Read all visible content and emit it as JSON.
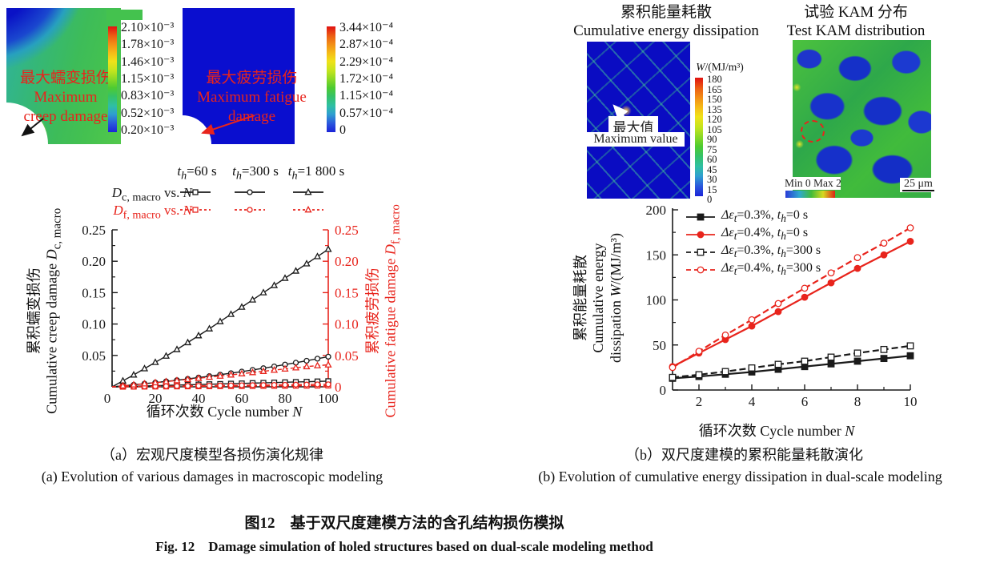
{
  "colors": {
    "black": "#1a1a1a",
    "red": "#e8241c",
    "contour_blue": "#0a0ecf"
  },
  "panel_a": {
    "creep_image": {
      "label_cn": "最大蠕变损伤",
      "label_en_line1": "Maximum",
      "label_en_line2": "creep damage",
      "colorbar_labels": [
        "2.10×10⁻³",
        "1.78×10⁻³",
        "1.46×10⁻³",
        "1.15×10⁻³",
        "0.83×10⁻³",
        "0.52×10⁻³",
        "0.20×10⁻³"
      ]
    },
    "fatigue_image": {
      "label_cn": "最大疲劳损伤",
      "label_en_line1": "Maximum fatigue",
      "label_en_line2": "damage",
      "colorbar_labels": [
        "3.44×10⁻⁴",
        "2.87×10⁻⁴",
        "2.29×10⁻⁴",
        "1.72×10⁻⁴",
        "1.15×10⁻⁴",
        "0.57×10⁻⁴",
        "0"
      ]
    },
    "legend": {
      "columns": [
        [
          {
            "t": "t",
            "i": true
          },
          {
            "t": "h",
            "i": true,
            "sub": true
          },
          {
            "t": "=60 s"
          }
        ],
        [
          {
            "t": "t",
            "i": true
          },
          {
            "t": "h",
            "i": true,
            "sub": true
          },
          {
            "t": "=300 s"
          }
        ],
        [
          {
            "t": "t",
            "i": true
          },
          {
            "t": "h",
            "i": true,
            "sub": true
          },
          {
            "t": "=1 800 s"
          }
        ]
      ],
      "rows": [
        {
          "label": [
            {
              "t": "D",
              "i": true
            },
            {
              "t": "c, macro",
              "sub": true
            },
            {
              "t": " vs. "
            },
            {
              "t": "N",
              "i": true
            }
          ],
          "color": "black",
          "line": "solid",
          "marker_fill": "open",
          "markers": [
            "square",
            "circle",
            "triangle"
          ]
        },
        {
          "label": [
            {
              "t": "D",
              "i": true
            },
            {
              "t": "f, macro",
              "sub": true
            },
            {
              "t": " vs. "
            },
            {
              "t": "N",
              "i": true
            }
          ],
          "color": "red",
          "line": "dashed",
          "marker_fill": "open",
          "markers": [
            "square",
            "circle",
            "triangle"
          ]
        }
      ]
    },
    "caption_cn": "（a）宏观尺度模型各损伤演化规律",
    "caption_en": "(a) Evolution of various damages in macroscopic modeling"
  },
  "panel_b": {
    "sim_title_cn": "累积能量耗散",
    "sim_title_en": "Cumulative energy dissipation",
    "kam_title_cn": "试验 KAM 分布",
    "kam_title_en": "Test KAM distribution",
    "sim_annotation_cn": "最大值",
    "sim_annotation_en": "Maximum value",
    "w_colorbar": {
      "title_rich": [
        {
          "t": "W",
          "i": true
        },
        {
          "t": "/(MJ/m³)"
        }
      ],
      "labels": [
        "180",
        "165",
        "150",
        "135",
        "120",
        "105",
        "90",
        "75",
        "60",
        "45",
        "30",
        "15",
        "0"
      ]
    },
    "kam_scale": {
      "min_max": "Min 0 Max 2",
      "scalebar": "25 μm"
    },
    "caption_cn": "（b）双尺度建模的累积能量耗散演化",
    "caption_en": "(b) Evolution of cumulative energy dissipation in dual-scale modeling"
  },
  "figure_caption": {
    "cn": "图12　基于双尺度建模方法的含孔结构损伤模拟",
    "en": "Fig. 12　Damage simulation of holed structures based on dual-scale modeling method"
  },
  "chart_data": [
    {
      "id": "damage-evolution",
      "type": "line",
      "xlabel_rich": [
        {
          "t": "循环次数 Cycle number "
        },
        {
          "t": "N",
          "i": true
        }
      ],
      "ylabel_left_cn": "累积蠕变损伤",
      "ylabel_left_en_rich": [
        {
          "t": "Cumulative creep damage "
        },
        {
          "t": "D",
          "i": true
        },
        {
          "t": "c, macro",
          "sub": true
        }
      ],
      "ylabel_right_cn": "累积疲劳损伤",
      "ylabel_right_en_rich": [
        {
          "t": "Cumulative fatigue damage "
        },
        {
          "t": "D",
          "i": true
        },
        {
          "t": "f, macro",
          "sub": true
        }
      ],
      "xlim": [
        0,
        100
      ],
      "ylim": [
        0,
        0.25
      ],
      "xticks": [
        0,
        20,
        40,
        60,
        80,
        100
      ],
      "xtick_labels": [
        "0",
        "20",
        "40",
        "60",
        "80",
        "100"
      ],
      "yticks": [
        0,
        0.05,
        0.1,
        0.15,
        0.2,
        0.25
      ],
      "ytick_labels": [
        "0",
        "0.05",
        "0.10",
        "0.15",
        "0.20",
        "0.25"
      ],
      "x_minor_step": 10,
      "y_minor_step": 0.025,
      "grid": false,
      "x": [
        0,
        5,
        10,
        15,
        20,
        25,
        30,
        35,
        40,
        45,
        50,
        55,
        60,
        65,
        70,
        75,
        80,
        85,
        90,
        95,
        100
      ],
      "series": [
        {
          "name": "Dc,macro th=60 s",
          "axis": "left",
          "color": "black",
          "line": "solid",
          "marker": "square",
          "marker_fill": "open",
          "values": [
            0,
            0.0005,
            0.0009,
            0.0014,
            0.0018,
            0.0023,
            0.0027,
            0.0032,
            0.0036,
            0.0041,
            0.0045,
            0.005,
            0.0054,
            0.0059,
            0.0063,
            0.0068,
            0.0072,
            0.0077,
            0.0081,
            0.0086,
            0.009
          ]
        },
        {
          "name": "Dc,macro th=300 s",
          "axis": "left",
          "color": "black",
          "line": "solid",
          "marker": "circle",
          "marker_fill": "open",
          "values": [
            0,
            0.0016,
            0.0032,
            0.005,
            0.0067,
            0.0086,
            0.0105,
            0.0126,
            0.0147,
            0.017,
            0.0193,
            0.0217,
            0.0242,
            0.0269,
            0.0296,
            0.0324,
            0.0354,
            0.0384,
            0.0415,
            0.0448,
            0.048
          ]
        },
        {
          "name": "Dc,macro th=1 800 s",
          "axis": "left",
          "color": "black",
          "line": "solid",
          "marker": "triangle",
          "marker_fill": "open",
          "values": [
            0,
            0.0095,
            0.019,
            0.029,
            0.039,
            0.049,
            0.0595,
            0.0705,
            0.0815,
            0.0925,
            0.104,
            0.1155,
            0.127,
            0.1385,
            0.15,
            0.1615,
            0.173,
            0.1845,
            0.196,
            0.2075,
            0.219
          ]
        },
        {
          "name": "Df,macro th=60 s",
          "axis": "right",
          "color": "red",
          "line": "dashed",
          "marker": "square",
          "marker_fill": "open",
          "values": [
            0,
            0.0001,
            0.0002,
            0.0003,
            0.0004,
            0.0005,
            0.0006,
            0.0007,
            0.0008,
            0.0009,
            0.001,
            0.0011,
            0.0012,
            0.0013,
            0.0014,
            0.0015,
            0.0016,
            0.0017,
            0.0018,
            0.0019,
            0.002
          ]
        },
        {
          "name": "Df,macro th=300 s",
          "axis": "right",
          "color": "red",
          "line": "dashed",
          "marker": "circle",
          "marker_fill": "open",
          "values": [
            0,
            0.0002,
            0.0004,
            0.0006,
            0.0008,
            0.001,
            0.0012,
            0.0014,
            0.0016,
            0.0018,
            0.002,
            0.0022,
            0.0024,
            0.0026,
            0.0028,
            0.003,
            0.0032,
            0.0034,
            0.0036,
            0.0038,
            0.004
          ]
        },
        {
          "name": "Df,macro th=1 800 s",
          "axis": "right",
          "color": "red",
          "line": "dashed",
          "marker": "triangle",
          "marker_fill": "open",
          "values": [
            0,
            0.0016,
            0.0032,
            0.0049,
            0.0066,
            0.0083,
            0.01,
            0.0118,
            0.0136,
            0.0154,
            0.0172,
            0.019,
            0.0209,
            0.0228,
            0.0247,
            0.0266,
            0.0285,
            0.0304,
            0.0322,
            0.0337,
            0.035
          ]
        }
      ]
    },
    {
      "id": "energy-dissipation",
      "type": "line",
      "xlabel_rich": [
        {
          "t": "循环次数 Cycle number "
        },
        {
          "t": "N",
          "i": true
        }
      ],
      "ylabel_cn": "累积能量耗散",
      "ylabel_en1": "Cumulative energy",
      "ylabel_en2_rich": [
        {
          "t": "dissipation "
        },
        {
          "t": "W",
          "i": true
        },
        {
          "t": "/(MJ/m³)"
        }
      ],
      "xlim": [
        1,
        10
      ],
      "ylim": [
        0,
        200
      ],
      "xticks": [
        2,
        4,
        6,
        8,
        10
      ],
      "xtick_labels": [
        "2",
        "4",
        "6",
        "8",
        "10"
      ],
      "yticks": [
        0,
        50,
        100,
        150,
        200
      ],
      "ytick_labels": [
        "0",
        "50",
        "100",
        "150",
        "200"
      ],
      "x_minor_step": 1,
      "y_minor_step": 25,
      "grid": false,
      "legend_position": "top-left",
      "legend": [
        {
          "label": [
            {
              "t": "Δε",
              "i": true
            },
            {
              "t": "t",
              "i": true,
              "sub": true
            },
            {
              "t": "=0.3%, "
            },
            {
              "t": "t",
              "i": true
            },
            {
              "t": "h",
              "i": true,
              "sub": true
            },
            {
              "t": "=0 s"
            }
          ],
          "color": "black",
          "line": "solid",
          "marker": "square",
          "marker_fill": "filled"
        },
        {
          "label": [
            {
              "t": "Δε",
              "i": true
            },
            {
              "t": "t",
              "i": true,
              "sub": true
            },
            {
              "t": "=0.4%, "
            },
            {
              "t": "t",
              "i": true
            },
            {
              "t": "h",
              "i": true,
              "sub": true
            },
            {
              "t": "=0 s"
            }
          ],
          "color": "red",
          "line": "solid",
          "marker": "circle",
          "marker_fill": "filled"
        },
        {
          "label": [
            {
              "t": "Δε",
              "i": true
            },
            {
              "t": "t",
              "i": true,
              "sub": true
            },
            {
              "t": "=0.3%, "
            },
            {
              "t": "t",
              "i": true
            },
            {
              "t": "h",
              "i": true,
              "sub": true
            },
            {
              "t": "=300 s"
            }
          ],
          "color": "black",
          "line": "dashed",
          "marker": "square",
          "marker_fill": "open"
        },
        {
          "label": [
            {
              "t": "Δε",
              "i": true
            },
            {
              "t": "t",
              "i": true,
              "sub": true
            },
            {
              "t": "=0.4%, "
            },
            {
              "t": "t",
              "i": true
            },
            {
              "t": "h",
              "i": true,
              "sub": true
            },
            {
              "t": "=300 s"
            }
          ],
          "color": "red",
          "line": "dashed",
          "marker": "circle",
          "marker_fill": "open"
        }
      ],
      "x": [
        1,
        2,
        3,
        4,
        5,
        6,
        7,
        8,
        9,
        10
      ],
      "series": [
        {
          "name": "Δεt=0.3%, th=0 s",
          "color": "black",
          "line": "solid",
          "marker": "square",
          "marker_fill": "filled",
          "values": [
            13,
            15,
            17.5,
            20,
            23,
            26,
            29,
            32,
            35,
            38
          ]
        },
        {
          "name": "Δεt=0.4%, th=0 s",
          "color": "red",
          "line": "solid",
          "marker": "circle",
          "marker_fill": "filled",
          "values": [
            26,
            41,
            56,
            71,
            87,
            103,
            119,
            135,
            150,
            165
          ]
        },
        {
          "name": "Δεt=0.3%, th=300 s",
          "color": "black",
          "line": "dashed",
          "marker": "square",
          "marker_fill": "open",
          "values": [
            14,
            17,
            20.5,
            24.5,
            28.5,
            32,
            36.5,
            41,
            45,
            49
          ]
        },
        {
          "name": "Δεt=0.4%, th=300 s",
          "color": "red",
          "line": "dashed",
          "marker": "circle",
          "marker_fill": "open",
          "values": [
            25,
            43,
            61,
            78,
            96,
            113,
            130,
            147,
            163,
            180
          ]
        }
      ]
    }
  ]
}
